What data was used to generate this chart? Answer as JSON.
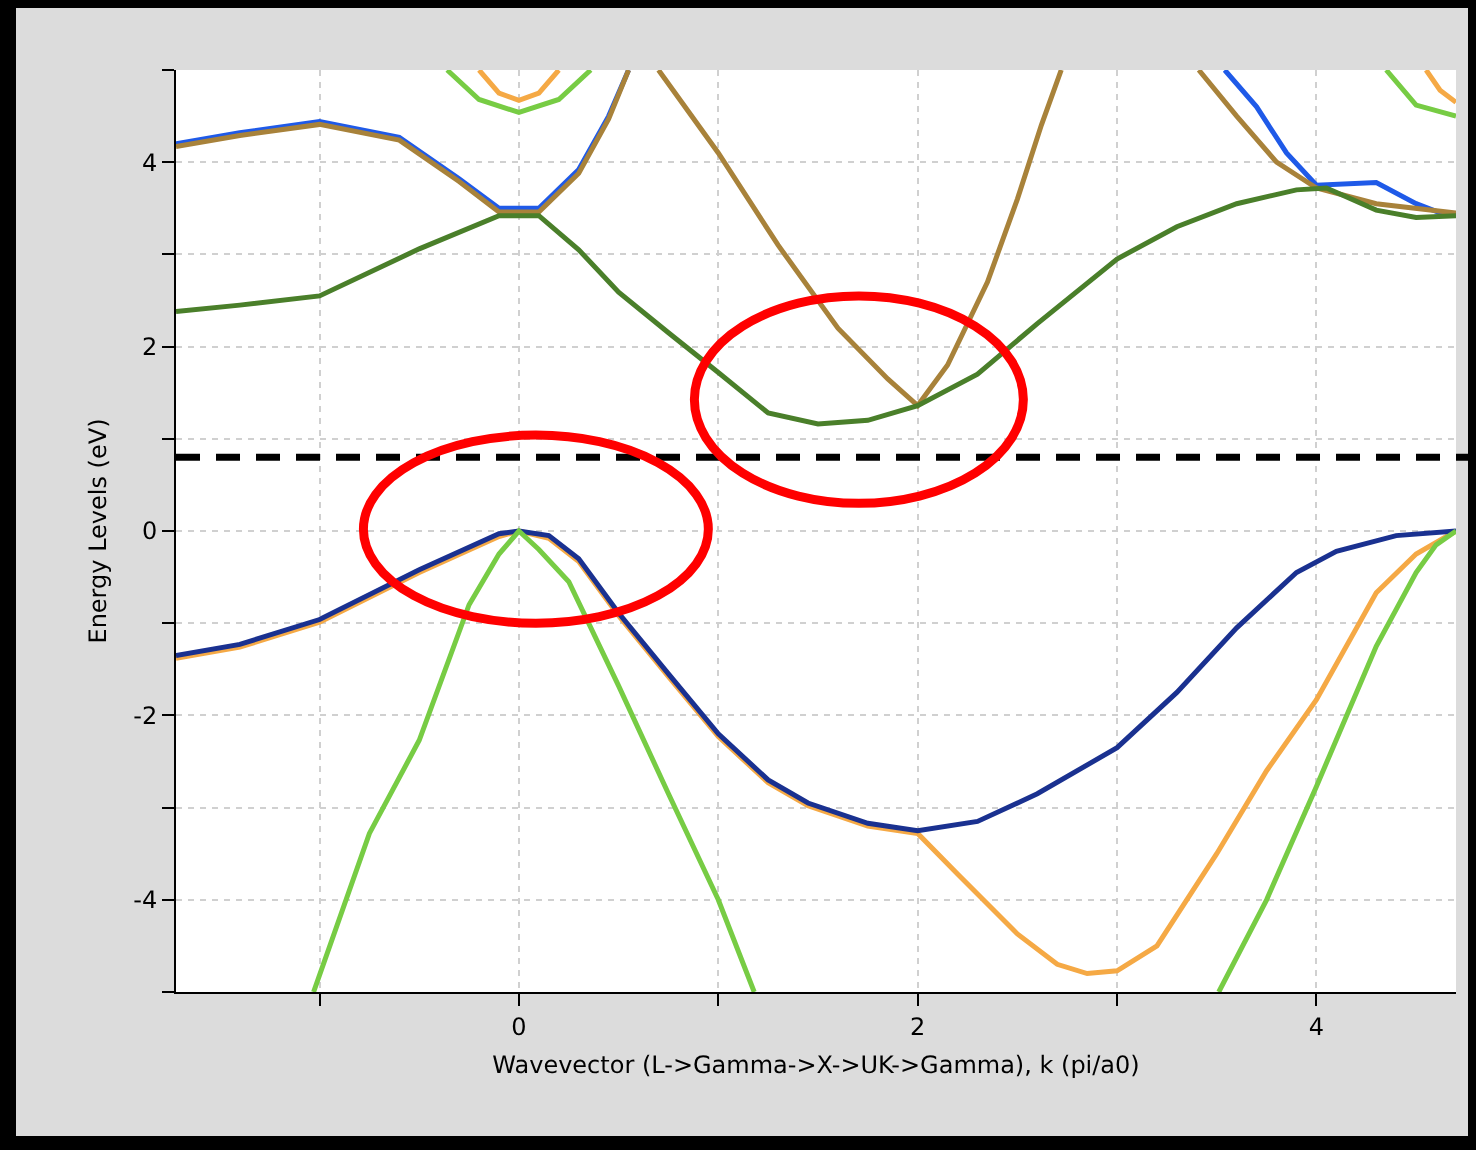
{
  "chart_data": {
    "type": "line",
    "xlabel": "Wavevector (L->Gamma->X->UK->Gamma), k (pi/a0)",
    "ylabel": "Energy Levels (eV)",
    "xlim": [
      -1.72,
      4.7
    ],
    "ylim": [
      -5,
      5
    ],
    "xticks": [
      {
        "value": -1,
        "label": null
      },
      0,
      {
        "value": 1,
        "label": null
      },
      2,
      {
        "value": 3,
        "label": null
      },
      4
    ],
    "yticks": [
      {
        "value": -5,
        "label": null
      },
      -4,
      {
        "value": -3,
        "label": null
      },
      -2,
      {
        "value": -1,
        "label": null
      },
      0,
      {
        "value": 1,
        "label": null
      },
      2,
      {
        "value": 3,
        "label": null
      },
      4,
      {
        "value": 5,
        "label": null
      }
    ],
    "grid": true,
    "marker": "none",
    "line_style": "solid",
    "ref_lines": [
      {
        "axis": "y",
        "value": 0.8,
        "color": "#000000",
        "line_style": "dashed"
      }
    ],
    "series": [
      {
        "color": "#1f5ae8",
        "x": [
          -1.72,
          -1.4,
          -1,
          -0.6,
          -0.3,
          -0.1,
          0.1,
          0.3,
          0.45,
          0.55,
          null,
          3.54,
          3.7,
          3.85,
          4.0,
          4.3,
          4.5,
          4.62,
          4.7
        ],
        "values": [
          4.2,
          4.32,
          4.44,
          4.27,
          3.82,
          3.5,
          3.5,
          3.92,
          4.5,
          5,
          null,
          5,
          4.6,
          4.1,
          3.75,
          3.78,
          3.55,
          3.45,
          3.43
        ]
      },
      {
        "color": "#a8823a",
        "x": [
          -1.72,
          -1.4,
          -1,
          -0.6,
          -0.3,
          -0.1,
          0.1,
          0.3,
          0.45,
          0.55,
          null,
          0.7,
          1.0,
          1.3,
          1.6,
          1.85,
          2.0,
          2.15,
          2.35,
          2.5,
          2.62,
          2.72,
          null,
          3.41,
          3.6,
          3.8,
          4.0,
          4.3,
          4.7
        ],
        "values": [
          4.17,
          4.29,
          4.41,
          4.24,
          3.79,
          3.46,
          3.46,
          3.88,
          4.47,
          5,
          null,
          5,
          4.1,
          3.1,
          2.2,
          1.65,
          1.36,
          1.8,
          2.7,
          3.6,
          4.4,
          5,
          null,
          5,
          4.5,
          4.0,
          3.72,
          3.55,
          3.45
        ]
      },
      {
        "color": "#4a7f2a",
        "x": [
          -1.72,
          -1.4,
          -1,
          -0.5,
          -0.1,
          0.1,
          0.3,
          0.5,
          0.75,
          1.0,
          1.25,
          1.5,
          1.75,
          2.0,
          2.3,
          2.6,
          3.0,
          3.3,
          3.6,
          3.9,
          4.05,
          4.3,
          4.5,
          4.7
        ],
        "values": [
          2.38,
          2.45,
          2.55,
          3.06,
          3.42,
          3.42,
          3.05,
          2.59,
          2.15,
          1.72,
          1.28,
          1.16,
          1.2,
          1.36,
          1.7,
          2.25,
          2.95,
          3.3,
          3.55,
          3.7,
          3.72,
          3.48,
          3.4,
          3.42
        ]
      },
      {
        "color": "#f5a945",
        "x": [
          -1.72,
          -1.4,
          -1,
          -0.5,
          -0.1,
          0,
          0.15,
          0.3,
          0.5,
          0.75,
          1.0,
          1.25,
          1.45,
          1.75,
          2.0,
          2.2,
          2.5,
          2.7,
          2.85,
          3.0,
          3.2,
          3.5,
          3.75,
          4.0,
          4.3,
          4.5,
          4.7,
          null,
          -0.2,
          -0.1,
          0,
          0.1,
          0.2,
          null,
          4.55,
          4.62,
          4.7
        ],
        "values": [
          -1.38,
          -1.26,
          -0.99,
          -0.45,
          -0.06,
          0,
          -0.08,
          -0.33,
          -0.92,
          -1.58,
          -2.23,
          -2.73,
          -2.98,
          -3.2,
          -3.28,
          -3.72,
          -4.37,
          -4.7,
          -4.8,
          -4.77,
          -4.5,
          -3.5,
          -2.6,
          -1.83,
          -0.67,
          -0.25,
          0,
          null,
          5,
          4.75,
          4.67,
          4.75,
          5,
          null,
          5,
          4.78,
          4.65
        ]
      },
      {
        "color": "#1a3190",
        "x": [
          -1.72,
          -1.4,
          -1,
          -0.5,
          -0.1,
          0,
          0.15,
          0.3,
          0.5,
          0.75,
          1.0,
          1.25,
          1.45,
          1.75,
          2.0,
          2.3,
          2.6,
          3.0,
          3.3,
          3.6,
          3.9,
          4.1,
          4.4,
          4.7
        ],
        "values": [
          -1.35,
          -1.23,
          -0.96,
          -0.42,
          -0.03,
          0,
          -0.05,
          -0.3,
          -0.89,
          -1.55,
          -2.2,
          -2.7,
          -2.95,
          -3.17,
          -3.25,
          -3.15,
          -2.85,
          -2.35,
          -1.75,
          -1.05,
          -0.45,
          -0.22,
          -0.05,
          0
        ]
      },
      {
        "color": "#77cc44",
        "x": [
          -1.03,
          -0.75,
          -0.5,
          -0.25,
          -0.1,
          0,
          0.1,
          0.25,
          0.5,
          0.75,
          1.0,
          1.18,
          null,
          3.51,
          3.75,
          4.0,
          4.3,
          4.5,
          4.6,
          4.7,
          null,
          -0.36,
          -0.2,
          0,
          0.2,
          0.36,
          null,
          4.35,
          4.5,
          4.7
        ],
        "values": [
          -5,
          -3.28,
          -2.27,
          -0.8,
          -0.25,
          0,
          -0.2,
          -0.55,
          -1.68,
          -2.85,
          -4.0,
          -5,
          null,
          -5,
          -4.0,
          -2.77,
          -1.25,
          -0.45,
          -0.15,
          0,
          null,
          5,
          4.68,
          4.54,
          4.68,
          5,
          null,
          5,
          4.62,
          4.5
        ]
      }
    ]
  }
}
